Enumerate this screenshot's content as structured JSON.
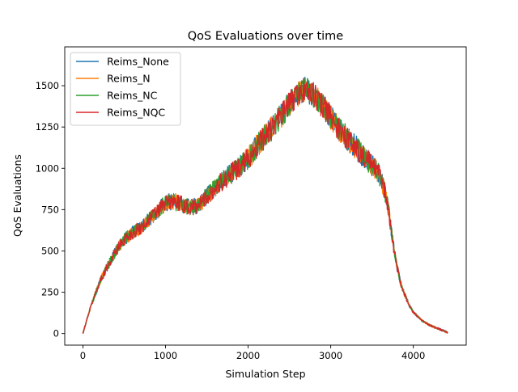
{
  "chart_data": {
    "type": "line",
    "title": "QoS Evaluations over time",
    "xlabel": "Simulation Step",
    "ylabel": "QoS Evaluations",
    "xlim": [
      -220,
      4640
    ],
    "ylim": [
      -70,
      1735
    ],
    "xticks": [
      0,
      1000,
      2000,
      3000,
      4000
    ],
    "xtick_labels": [
      "0",
      "1000",
      "2000",
      "3000",
      "4000"
    ],
    "yticks": [
      0,
      250,
      500,
      750,
      1000,
      1250,
      1500
    ],
    "ytick_labels": [
      "0",
      "250",
      "500",
      "750",
      "1000",
      "1250",
      "1500"
    ],
    "grid": false,
    "legend_position": "top-left",
    "x_max": 4420,
    "trend": [
      [
        0,
        0
      ],
      [
        50,
        90
      ],
      [
        100,
        170
      ],
      [
        150,
        240
      ],
      [
        200,
        310
      ],
      [
        300,
        410
      ],
      [
        400,
        500
      ],
      [
        500,
        570
      ],
      [
        600,
        610
      ],
      [
        700,
        640
      ],
      [
        800,
        690
      ],
      [
        900,
        740
      ],
      [
        1000,
        790
      ],
      [
        1100,
        800
      ],
      [
        1200,
        780
      ],
      [
        1300,
        760
      ],
      [
        1400,
        780
      ],
      [
        1500,
        830
      ],
      [
        1600,
        880
      ],
      [
        1700,
        930
      ],
      [
        1800,
        970
      ],
      [
        1900,
        1010
      ],
      [
        2000,
        1060
      ],
      [
        2100,
        1130
      ],
      [
        2200,
        1190
      ],
      [
        2300,
        1250
      ],
      [
        2400,
        1320
      ],
      [
        2500,
        1390
      ],
      [
        2600,
        1450
      ],
      [
        2700,
        1480
      ],
      [
        2800,
        1440
      ],
      [
        2900,
        1380
      ],
      [
        3000,
        1310
      ],
      [
        3100,
        1240
      ],
      [
        3200,
        1180
      ],
      [
        3300,
        1130
      ],
      [
        3400,
        1070
      ],
      [
        3500,
        1020
      ],
      [
        3550,
        990
      ],
      [
        3600,
        950
      ],
      [
        3650,
        870
      ],
      [
        3700,
        750
      ],
      [
        3750,
        560
      ],
      [
        3800,
        410
      ],
      [
        3850,
        300
      ],
      [
        3900,
        230
      ],
      [
        3950,
        170
      ],
      [
        4000,
        130
      ],
      [
        4100,
        80
      ],
      [
        4200,
        50
      ],
      [
        4300,
        30
      ],
      [
        4420,
        5
      ]
    ],
    "series": [
      {
        "name": "Reims_None",
        "color": "#1f77b4"
      },
      {
        "name": "Reims_N",
        "color": "#ff7f0e"
      },
      {
        "name": "Reims_NC",
        "color": "#2ca02c"
      },
      {
        "name": "Reims_NQC",
        "color": "#d62728"
      }
    ]
  }
}
